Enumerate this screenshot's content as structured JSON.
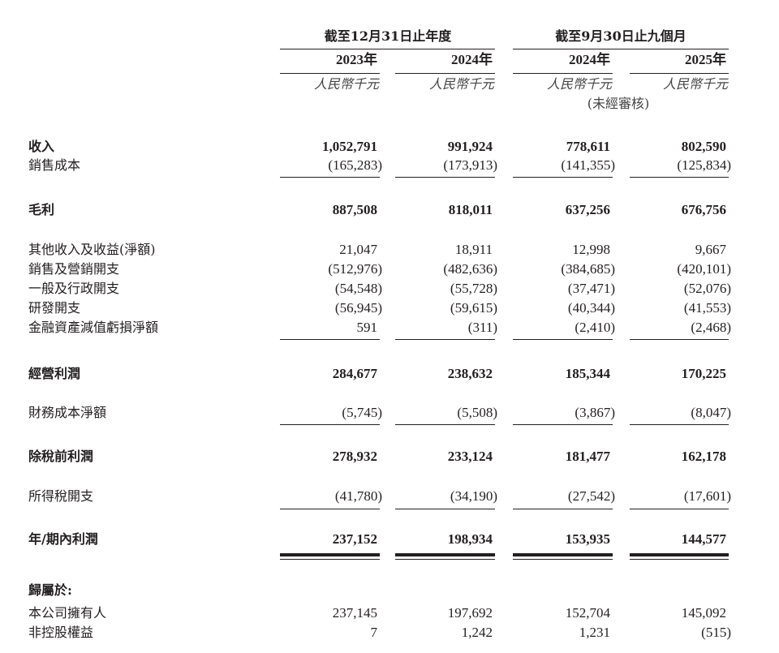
{
  "header": {
    "group1": "截至12月31日止年度",
    "group2": "截至9月30日止九個月",
    "years": [
      "2023年",
      "2024年",
      "2024年",
      "2025年"
    ],
    "unit": "人民幣千元",
    "unaudited": "(未經審核)"
  },
  "rows": [
    {
      "label": "收入",
      "bold": true,
      "values": [
        "1,052,791",
        "991,924",
        "778,611",
        "802,590"
      ]
    },
    {
      "label": "銷售成本",
      "bold": false,
      "values": [
        "(165,283)",
        "(173,913)",
        "(141,355)",
        "(125,834)"
      ]
    },
    {
      "label": "毛利",
      "bold": true,
      "values": [
        "887,508",
        "818,011",
        "637,256",
        "676,756"
      ]
    },
    {
      "label": "其他收入及收益(淨額)",
      "bold": false,
      "values": [
        "21,047",
        "18,911",
        "12,998",
        "9,667"
      ]
    },
    {
      "label": "銷售及營銷開支",
      "bold": false,
      "values": [
        "(512,976)",
        "(482,636)",
        "(384,685)",
        "(420,101)"
      ]
    },
    {
      "label": "一般及行政開支",
      "bold": false,
      "values": [
        "(54,548)",
        "(55,728)",
        "(37,471)",
        "(52,076)"
      ]
    },
    {
      "label": "研發開支",
      "bold": false,
      "values": [
        "(56,945)",
        "(59,615)",
        "(40,344)",
        "(41,553)"
      ]
    },
    {
      "label": "金融資產減值虧損淨額",
      "bold": false,
      "values": [
        "591",
        "(311)",
        "(2,410)",
        "(2,468)"
      ]
    },
    {
      "label": "經營利潤",
      "bold": true,
      "values": [
        "284,677",
        "238,632",
        "185,344",
        "170,225"
      ]
    },
    {
      "label": "財務成本淨額",
      "bold": false,
      "values": [
        "(5,745)",
        "(5,508)",
        "(3,867)",
        "(8,047)"
      ]
    },
    {
      "label": "除稅前利潤",
      "bold": true,
      "values": [
        "278,932",
        "233,124",
        "181,477",
        "162,178"
      ]
    },
    {
      "label": "所得稅開支",
      "bold": false,
      "values": [
        "(41,780)",
        "(34,190)",
        "(27,542)",
        "(17,601)"
      ]
    },
    {
      "label": "年/期內利潤",
      "bold": true,
      "values": [
        "237,152",
        "198,934",
        "153,935",
        "144,577"
      ]
    },
    {
      "label": "歸屬於:",
      "bold": true,
      "values": []
    },
    {
      "label": "本公司擁有人",
      "bold": false,
      "values": [
        "237,145",
        "197,692",
        "152,704",
        "145,092"
      ]
    },
    {
      "label": "非控股權益",
      "bold": false,
      "values": [
        "7",
        "1,242",
        "1,231",
        "(515)"
      ]
    }
  ]
}
